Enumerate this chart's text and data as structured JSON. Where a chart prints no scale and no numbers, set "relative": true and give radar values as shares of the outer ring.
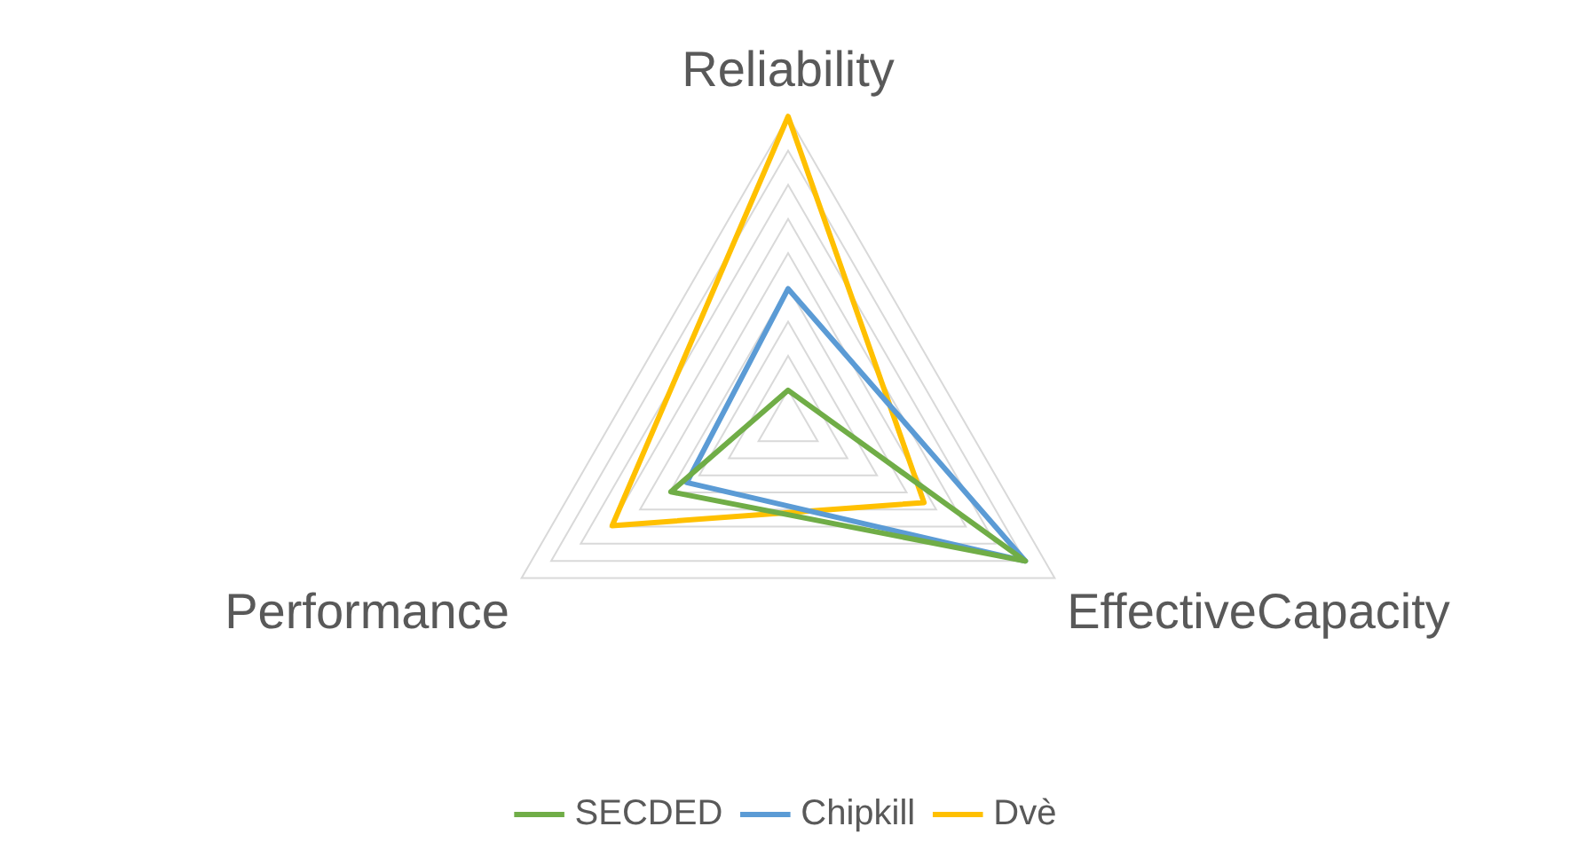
{
  "chart_data": {
    "type": "radar",
    "relative": true,
    "categories": [
      "Reliability",
      "EffectiveCapacity",
      "Performance"
    ],
    "series": [
      {
        "name": "SECDED",
        "color": "#70ad47",
        "values": [
          0.11,
          0.89,
          0.44
        ]
      },
      {
        "name": "Chipkill",
        "color": "#5b9bd5",
        "values": [
          0.44,
          0.89,
          0.38
        ]
      },
      {
        "name": "Dvè",
        "color": "#ffc000",
        "values": [
          1,
          0.51,
          0.66
        ]
      }
    ],
    "legend": "bottom"
  }
}
